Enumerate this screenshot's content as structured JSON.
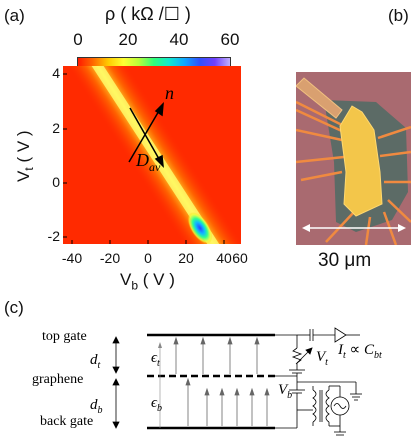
{
  "panel_a": {
    "label": "(a)",
    "colorbar": {
      "title": "ρ ( kΩ /☐ )",
      "ticks": [
        "0",
        "20",
        "40",
        "60"
      ],
      "stops": [
        "#ff1a00",
        "#ff6a00",
        "#ffcc00",
        "#ffff33",
        "#b8ff3a",
        "#30ff7a",
        "#10e8d0",
        "#10a8ff",
        "#3050ff",
        "#7040ff",
        "#c0b0ff"
      ]
    },
    "x_ticks": [
      "-40",
      "-20",
      "0",
      "20",
      "40",
      "60"
    ],
    "y_ticks": [
      "4",
      "2",
      "0",
      "-2"
    ],
    "xlabel_main": "V",
    "xlabel_sub": "b",
    "xlabel_unit": " ( V )",
    "ylabel_main": "V",
    "ylabel_sub": "t",
    "ylabel_unit": " ( V )",
    "arrow_n": "n",
    "arrow_dav": "D",
    "arrow_dav_sub": "av"
  },
  "panel_b": {
    "label": "(b)",
    "scale_text": "30 μm"
  },
  "panel_c": {
    "label": "(c)",
    "top_gate": "top gate",
    "graphene": "graphene",
    "back_gate": "back gate",
    "dt": "d",
    "dt_sub": "t",
    "db": "d",
    "db_sub": "b",
    "eps_t": "ϵ",
    "eps_t_sub": "t",
    "eps_b": "ϵ",
    "eps_b_sub": "b",
    "vt": "V",
    "vt_sub": "t",
    "vb": "V",
    "vb_sub": "b",
    "it": "I",
    "it_sub": "t",
    "prop": " ∝ ",
    "cbt": "C",
    "cbt_sub": "bt"
  }
}
